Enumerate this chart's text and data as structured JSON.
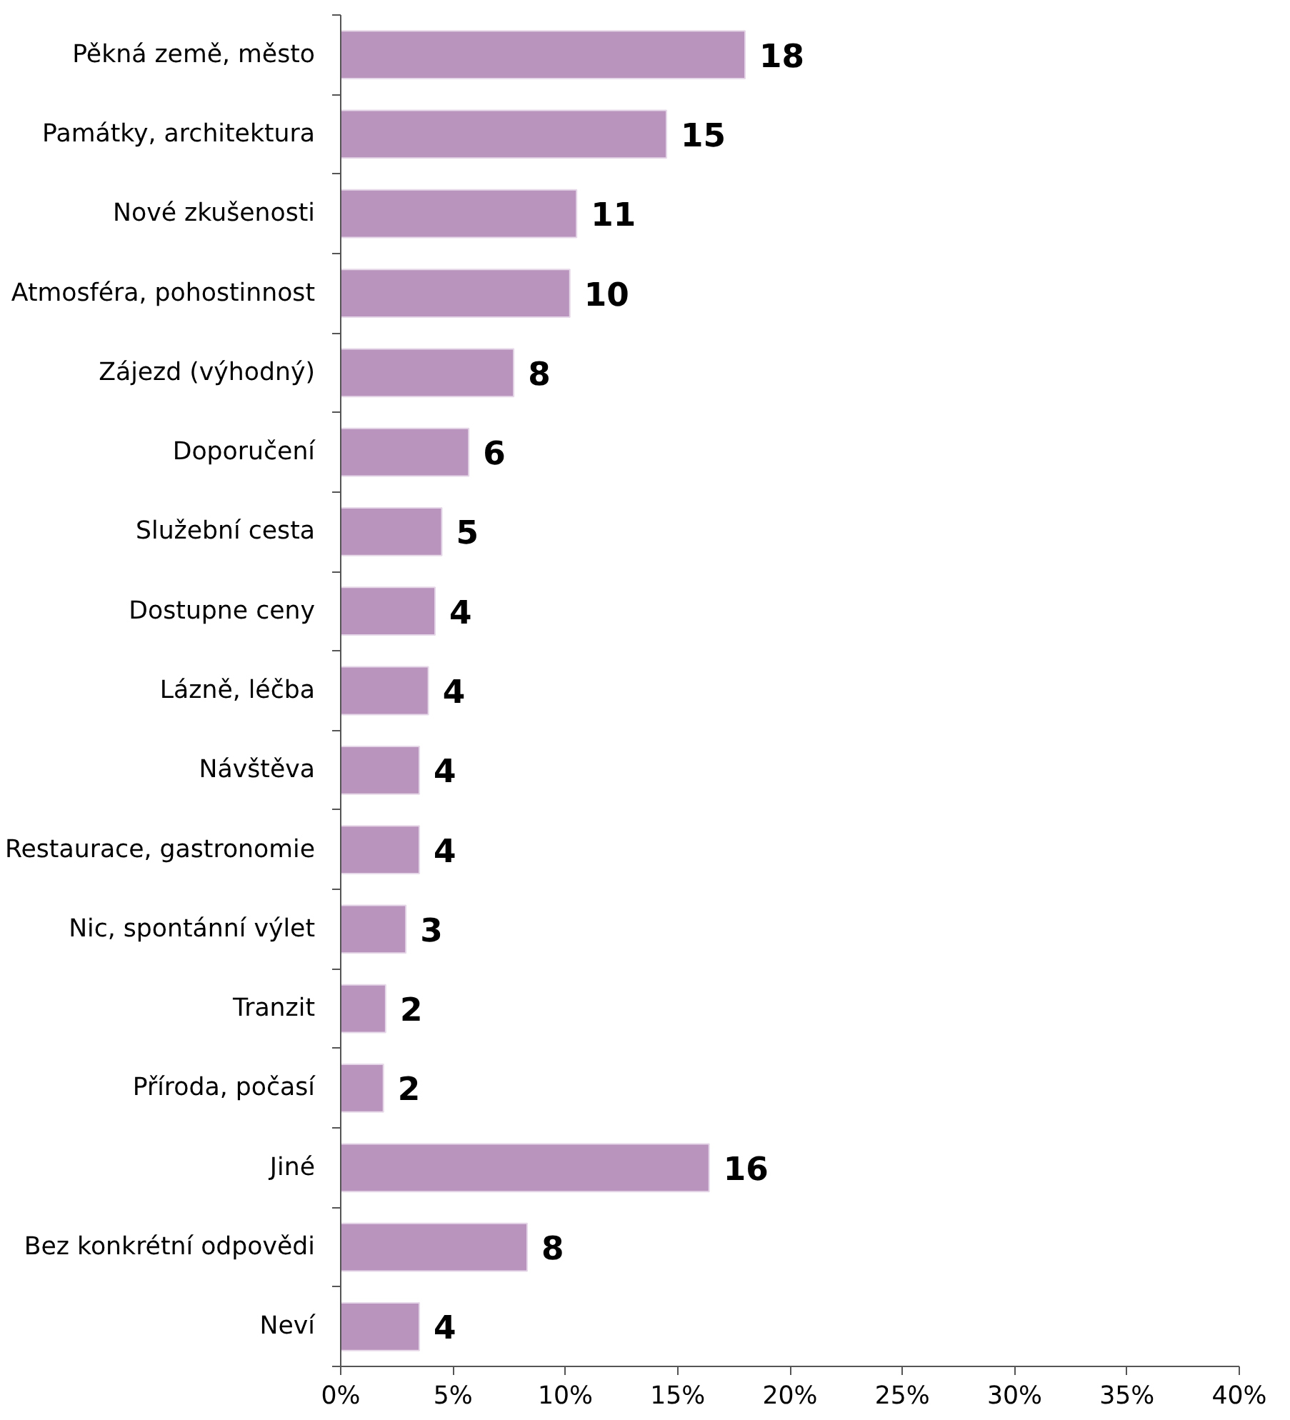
{
  "chart_data": {
    "type": "bar",
    "orientation": "horizontal",
    "categories": [
      "Pěkná země, město",
      "Památky, architektura",
      "Nové zkušenosti",
      "Atmosféra, pohostinnost",
      "Zájezd (výhodný)",
      "Doporučení",
      "Služební cesta",
      "Dostupne ceny",
      "Lázně, léčba",
      "Návštěva",
      "Restaurace, gastronomie",
      "Nic, spontánní výlet",
      "Tranzit",
      "Příroda, počasí",
      "Jiné",
      "Bez konkrétní odpovědi",
      "Neví"
    ],
    "values": [
      18.0,
      14.5,
      10.5,
      10.2,
      7.7,
      5.7,
      4.5,
      4.2,
      3.9,
      3.5,
      3.5,
      2.9,
      2.0,
      1.9,
      16.4,
      8.3,
      3.5
    ],
    "value_labels": [
      "18",
      "15",
      "11",
      "10",
      "8",
      "6",
      "5",
      "4",
      "4",
      "4",
      "4",
      "3",
      "2",
      "2",
      "16",
      "8",
      "4"
    ],
    "color": "#b995be",
    "xlim": [
      0,
      40
    ],
    "xticks": [
      {
        "value": 0,
        "label": "0%"
      },
      {
        "value": 5,
        "label": "5%"
      },
      {
        "value": 10,
        "label": "10%"
      },
      {
        "value": 15,
        "label": "15%"
      },
      {
        "value": 20,
        "label": "20%"
      },
      {
        "value": 25,
        "label": "25%"
      },
      {
        "value": 30,
        "label": "30%"
      },
      {
        "value": 35,
        "label": "35%"
      },
      {
        "value": 40,
        "label": "40%"
      }
    ],
    "grid": false
  }
}
